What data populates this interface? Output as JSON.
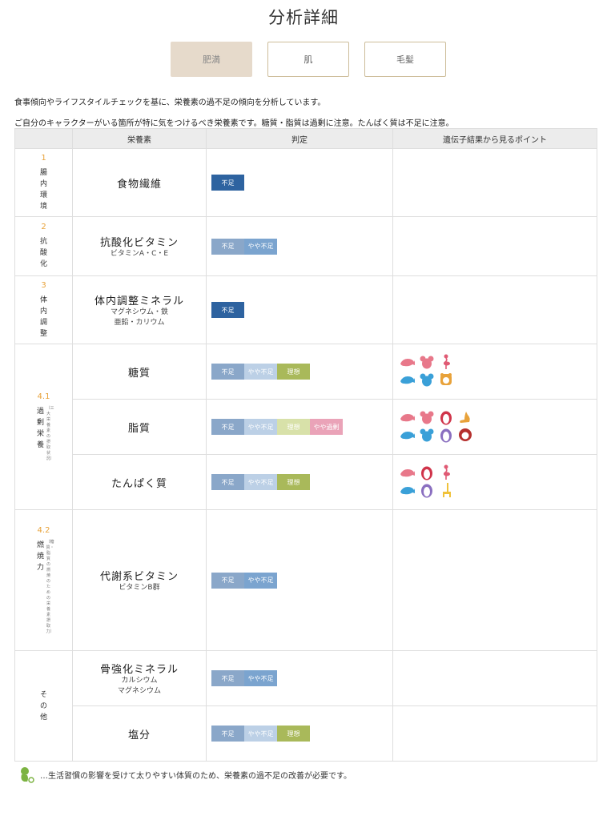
{
  "page": {
    "title": "分析詳細"
  },
  "tabs": [
    {
      "label": "肥満",
      "active": true
    },
    {
      "label": "肌",
      "active": false
    },
    {
      "label": "毛髪",
      "active": false
    }
  ],
  "intro": {
    "line1": "食事傾向やライフスタイルチェックを基に、栄養素の過不足の傾向を分析しています。",
    "line2": "ご自分のキャラクターがいる箇所が特に気をつけるべき栄養素です。糖質・脂質は過剰に注意。たんぱく質は不足に注意。"
  },
  "table": {
    "headers": [
      "",
      "栄養素",
      "判定",
      "遺伝子結果から見るポイント"
    ],
    "levels": {
      "fusoku": "不足",
      "yaya_fusoku": "やや不足",
      "riso": "理想",
      "yaya_kajo": "やや過剰"
    },
    "categories": [
      {
        "num": "1",
        "label": "腸内環境"
      },
      {
        "num": "2",
        "label": "抗酸化"
      },
      {
        "num": "3",
        "label": "体内調整"
      },
      {
        "num": "4.1",
        "label": "過剰栄養",
        "sub": "（三大栄養素の摂取状況）"
      },
      {
        "num": "4.2",
        "label": "燃焼力",
        "sub": "（糖質・脂質の燃焼のための栄養素摂取力）"
      },
      {
        "num": "",
        "label": "その他"
      }
    ],
    "rows": [
      {
        "name": "食物繊維",
        "sub": ""
      },
      {
        "name": "抗酸化ビタミン",
        "sub": "ビタミンA・C・E"
      },
      {
        "name": "体内調整ミネラル",
        "sub": "マグネシウム・鉄",
        "sub2": "亜鉛・カリウム"
      },
      {
        "name": "糖質",
        "sub": ""
      },
      {
        "name": "脂質",
        "sub": ""
      },
      {
        "name": "たんぱく質",
        "sub": ""
      },
      {
        "name": "代謝系ビタミン",
        "sub": "ビタミンB群"
      },
      {
        "name": "骨強化ミネラル",
        "sub": "カルシウム",
        "sub2": "マグネシウム"
      },
      {
        "name": "塩分",
        "sub": ""
      }
    ]
  },
  "icons": {
    "seal": "seal-icon",
    "koala": "koala-icon",
    "flamingo": "flamingo-icon",
    "lion": "lion-icon",
    "penguin": "penguin-icon",
    "kangaroo": "kangaroo-icon",
    "monkey": "monkey-icon",
    "giraffe": "giraffe-icon",
    "mascot": "mascot-icon"
  },
  "colors": {
    "fusoku_on": "#2e63a0",
    "fusoku": "#8aa7c9",
    "yaya": "#bcd0e6",
    "yaya_on": "#7ba4cf",
    "riso": "#d8e1a9",
    "riso_on": "#a9b95a",
    "kajo": "#eaa3b8",
    "accent": "#e8a23a"
  },
  "footer": {
    "note": "…生活習慣の影響を受けて太りやすい体質のため、栄養素の過不足の改善が必要です。"
  }
}
